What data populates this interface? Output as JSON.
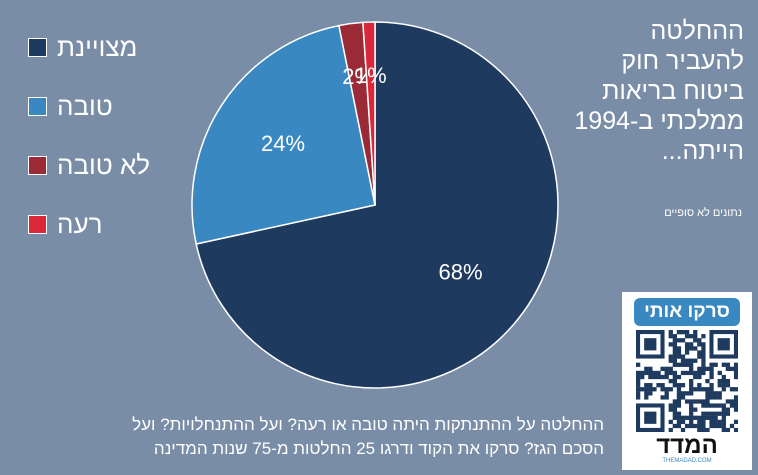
{
  "chart_data": {
    "type": "pie",
    "title_lines": [
      "ההחלטה",
      "להעביר חוק",
      "ביטוח בריאות",
      "ממלכתי ב-1994",
      "הייתה..."
    ],
    "subtitle": "נתונים לא סופיים",
    "categories": [
      "מצויינת",
      "טובה",
      "לא טובה",
      "רעה"
    ],
    "values": [
      68,
      24,
      2,
      1
    ],
    "value_labels": [
      "68%",
      "24%",
      "2%",
      "1%"
    ],
    "colors": [
      "#1f3a5f",
      "#3a88c2",
      "#9a2a35",
      "#d8283a"
    ],
    "legend": "top-left",
    "footer_lines": [
      "ההחלטה על ההתנתקות היתה טובה או רעה? ועל ההתנחלויות? ועל",
      "הסכם הגז? סרקו את הקוד ודרגו 25 החלטות מ-75 שנות המדינה"
    ]
  },
  "qr_box": {
    "heading": "סרקו אותי",
    "brand": "המדד",
    "site": "THEMADAD.COM"
  }
}
